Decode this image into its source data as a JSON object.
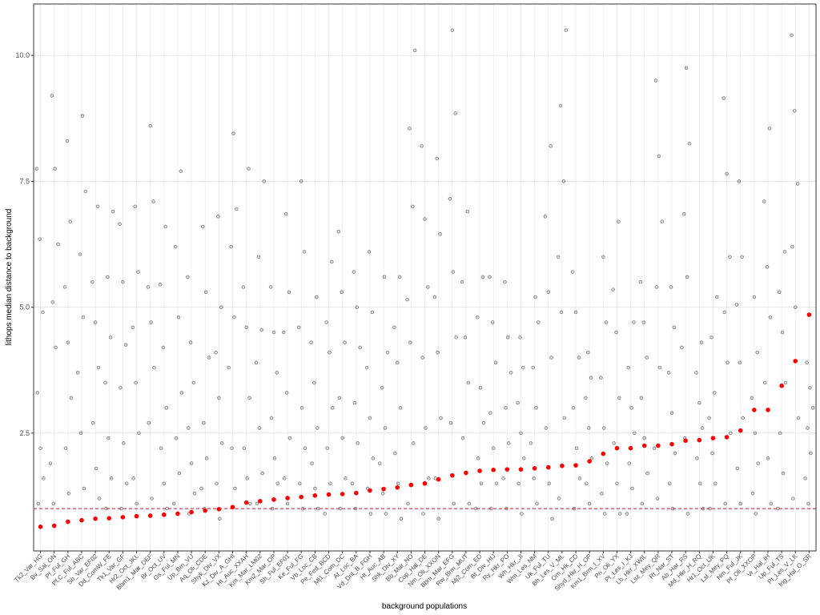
{
  "chart_data": {
    "type": "strip",
    "x_label": "background populations",
    "y_label": "lithops median distance to background",
    "categories": [
      "Tk2_Var_HG",
      "Bv_Sal_ON",
      "Pf_Ful_GH",
      "Pf.C_Ful_ABC",
      "Sb_Var_EF02",
      "Dd_ComW_FE",
      "Tk1_Var_GF",
      "Hr2_Oct_JKL",
      "Bbm1_Mar_DEF",
      "Br_Oct_UV",
      "Gs_Ful_MN",
      "Up_Bm_VU",
      "Aq_Oli_CDE",
      "Shyk_Div_VX",
      "Kz_Div_A_GHI",
      "Ht_Auc_XXAH",
      "Km_Mar_LM02",
      "Km2_Mar_OP",
      "Sh_Ful_EF01",
      "Ke_Ful_FG",
      "Vb_Loc_CB",
      "Pe_Fed_BCD",
      "Mj1_Com_DC",
      "At_Loc_BA",
      "Vd_Dnt_B_FGH",
      "Ht_Auc_AB",
      "Shk_Div_XY",
      "Bb_Mar_NO",
      "Cop_Hal_DE",
      "Nm_Oli_XXON",
      "Bbm_Mar_EFG",
      "Rw_Brm_MUT",
      "Mj2_Com_ED",
      "Bt_Div_HIJ",
      "Ry_Hkr_PO",
      "Wh_Hkr_JI",
      "Wm_Les_NM",
      "Uk_Ful_TU",
      "Bh_Les_V_ML",
      "Om_Hk_CD",
      "Shyd_Hkr_H_OP",
      "Km1_Brm_I_XV",
      "Pn_Oli_YX",
      "Pt_Les_I_KJ",
      "Lb_Hkr_XWIL",
      "Lsz_Mey_QR",
      "Rt_Nar_ST",
      "Ab_Har_RS",
      "Md_Hkr_H_RQ",
      "Hr1_Oct_IJK",
      "Lsl_Mey_PQ",
      "Nm_Ful_JK",
      "Pf_Oli_XXOP",
      "Vr_Hal_IH",
      "Up_Ful_TS",
      "Pt_Les_V_LK",
      "Ing_Hal_O_SR"
    ],
    "series": [
      {
        "color": "#000000",
        "values": [
          [
            7.75,
            6.35,
            4.9,
            3.3,
            2.2,
            1.6,
            1.1
          ],
          [
            9.2,
            7.75,
            6.25,
            5.1,
            4.2,
            1.9,
            1.1
          ],
          [
            8.3,
            6.7,
            5.4,
            4.3,
            3.2,
            2.2,
            1.3
          ],
          [
            8.8,
            7.3,
            6.05,
            4.8,
            3.7,
            2.5,
            1.4
          ],
          [
            7.0,
            5.5,
            4.7,
            3.8,
            2.7,
            1.8,
            1.2
          ],
          [
            6.9,
            5.6,
            4.4,
            3.5,
            2.4,
            1.6,
            1.0
          ],
          [
            6.65,
            5.5,
            4.25,
            3.4,
            2.3,
            1.5,
            1.0
          ],
          [
            7.0,
            5.7,
            4.6,
            3.5,
            2.5,
            1.6,
            1.1
          ],
          [
            8.6,
            7.1,
            5.4,
            4.7,
            3.8,
            2.7,
            1.2
          ],
          [
            6.6,
            5.45,
            4.2,
            3.0,
            2.2,
            1.5,
            1.0
          ],
          [
            7.7,
            6.2,
            4.8,
            3.3,
            2.4,
            1.7,
            1.1
          ],
          [
            5.6,
            4.3,
            3.5,
            2.6,
            1.9,
            1.3,
            0.9
          ],
          [
            6.6,
            5.3,
            4.0,
            2.7,
            2.0,
            1.4,
            1.0
          ],
          [
            6.8,
            5.0,
            4.1,
            3.2,
            2.3,
            1.5,
            0.8
          ],
          [
            8.45,
            6.95,
            6.2,
            4.8,
            3.8,
            2.2,
            1.4
          ],
          [
            7.75,
            5.4,
            4.6,
            3.2,
            2.2,
            1.6,
            1.1
          ],
          [
            7.5,
            6.0,
            4.55,
            3.9,
            2.6,
            1.7,
            1.1
          ],
          [
            5.4,
            4.5,
            3.7,
            2.8,
            2.0,
            1.5,
            1.0
          ],
          [
            6.85,
            5.3,
            4.5,
            3.3,
            2.4,
            1.6,
            1.1
          ],
          [
            7.5,
            6.1,
            4.6,
            3.0,
            2.2,
            1.5,
            1.0
          ],
          [
            5.2,
            4.3,
            3.5,
            2.6,
            1.9,
            1.4,
            1.0
          ],
          [
            5.9,
            4.7,
            4.1,
            3.0,
            2.2,
            1.5,
            0.9
          ],
          [
            6.5,
            5.3,
            4.3,
            3.2,
            2.4,
            1.6,
            1.0
          ],
          [
            5.7,
            5.0,
            4.2,
            3.1,
            2.3,
            1.5,
            1.0
          ],
          [
            6.1,
            4.9,
            3.8,
            2.8,
            2.0,
            1.4,
            0.9
          ],
          [
            5.6,
            4.1,
            3.4,
            2.6,
            1.9,
            1.3,
            0.9
          ],
          [
            5.6,
            4.6,
            3.9,
            3.0,
            2.1,
            1.5,
            0.8
          ],
          [
            10.1,
            8.55,
            7.0,
            5.15,
            4.3,
            2.3,
            1.1
          ],
          [
            8.2,
            6.75,
            5.4,
            4.0,
            2.6,
            1.6,
            0.9
          ],
          [
            7.95,
            6.45,
            5.2,
            4.1,
            2.8,
            1.6,
            0.8
          ],
          [
            10.5,
            8.85,
            7.15,
            5.7,
            4.4,
            2.7,
            1.1
          ],
          [
            6.9,
            5.5,
            4.4,
            3.5,
            2.4,
            1.7,
            1.1
          ],
          [
            5.6,
            4.8,
            3.4,
            2.7,
            2.0,
            1.5,
            1.0
          ],
          [
            5.6,
            4.7,
            3.9,
            2.9,
            2.2,
            1.5,
            1.0
          ],
          [
            5.5,
            4.4,
            3.7,
            3.0,
            2.3,
            1.6,
            1.0
          ],
          [
            4.4,
            3.8,
            3.1,
            2.5,
            2.0,
            1.5,
            0.9
          ],
          [
            5.2,
            4.7,
            3.8,
            3.0,
            2.3,
            1.6,
            1.1
          ],
          [
            8.2,
            6.8,
            5.3,
            4.0,
            2.6,
            1.5,
            0.8
          ],
          [
            10.5,
            9.0,
            7.5,
            6.0,
            4.9,
            2.8,
            1.2
          ],
          [
            5.7,
            4.9,
            4.0,
            3.0,
            2.2,
            1.6,
            1.0
          ],
          [
            4.1,
            3.6,
            3.2,
            2.6,
            2.0,
            1.5,
            1.1
          ],
          [
            6.0,
            4.7,
            3.6,
            2.6,
            1.9,
            1.3,
            0.9
          ],
          [
            6.7,
            5.35,
            4.5,
            3.2,
            2.3,
            1.5,
            0.9
          ],
          [
            4.7,
            3.8,
            3.0,
            2.5,
            1.9,
            1.4,
            0.9
          ],
          [
            5.5,
            4.7,
            4.0,
            3.2,
            2.4,
            1.7,
            1.1
          ],
          [
            9.5,
            8.0,
            6.7,
            5.4,
            3.8,
            2.2,
            1.2
          ],
          [
            5.4,
            4.6,
            3.7,
            2.9,
            2.1,
            1.5,
            1.0
          ],
          [
            9.75,
            8.25,
            6.85,
            5.6,
            4.2,
            2.4,
            0.9
          ],
          [
            4.3,
            3.7,
            3.1,
            2.6,
            2.0,
            1.5,
            1.0
          ],
          [
            5.2,
            4.4,
            3.3,
            2.8,
            2.1,
            1.5,
            1.0
          ],
          [
            9.15,
            7.65,
            6.0,
            4.9,
            3.9,
            2.5,
            1.1
          ],
          [
            7.5,
            6.0,
            5.05,
            3.9,
            2.8,
            1.8,
            1.1
          ],
          [
            5.2,
            4.1,
            3.2,
            2.5,
            1.9,
            1.3,
            0.9
          ],
          [
            8.55,
            7.1,
            5.8,
            4.8,
            3.5,
            2.0,
            1.1
          ],
          [
            6.1,
            5.3,
            4.5,
            3.5,
            2.5,
            1.7,
            1.0
          ],
          [
            10.4,
            8.9,
            7.45,
            6.2,
            5.0,
            2.8,
            1.2
          ],
          [
            3.9,
            3.4,
            3.0,
            2.6,
            2.1,
            1.6,
            1.1
          ]
        ]
      },
      {
        "color": "#ff0000",
        "values": [
          0.64,
          0.66,
          0.74,
          0.77,
          0.8,
          0.81,
          0.83,
          0.85,
          0.86,
          0.88,
          0.9,
          0.93,
          0.96,
          0.99,
          1.03,
          1.12,
          1.15,
          1.18,
          1.21,
          1.23,
          1.26,
          1.28,
          1.29,
          1.31,
          1.36,
          1.39,
          1.42,
          1.47,
          1.5,
          1.58,
          1.66,
          1.71,
          1.75,
          1.77,
          1.78,
          1.78,
          1.8,
          1.82,
          1.85,
          1.86,
          1.94,
          2.09,
          2.2,
          2.2,
          2.25,
          2.25,
          2.28,
          2.35,
          2.36,
          2.4,
          2.42,
          2.55,
          2.96,
          2.96,
          3.44,
          3.93,
          4.85
        ]
      }
    ],
    "reference_line": {
      "value": 1.0,
      "color": "#c8102e",
      "dashed": true
    },
    "ylim": [
      0.16,
      11.02
    ],
    "yticks": [
      2.5,
      {
        "value": 5,
        "label": "5.0"
      },
      7.5,
      {
        "value": 10,
        "label": "10.0"
      }
    ],
    "grid": true
  }
}
